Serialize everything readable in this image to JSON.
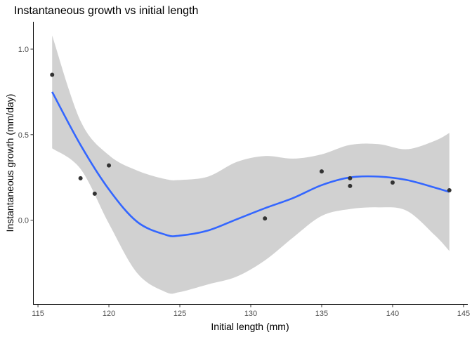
{
  "chart_data": {
    "type": "scatter",
    "title": "Instantaneous growth vs initial length",
    "xlabel": "Initial length (mm)",
    "ylabel": "Instantaneous growth (mm/day)",
    "xlim": [
      114.7,
      145.3
    ],
    "ylim": [
      -0.49,
      1.16
    ],
    "x_ticks": [
      115,
      120,
      125,
      130,
      135,
      140,
      145
    ],
    "y_ticks": [
      0.0,
      0.5,
      1.0
    ],
    "y_tick_labels": [
      "0.0",
      "0.5",
      "1.0"
    ],
    "grid": false,
    "points": [
      {
        "x": 116,
        "y": 0.85
      },
      {
        "x": 118,
        "y": 0.245
      },
      {
        "x": 119,
        "y": 0.155
      },
      {
        "x": 120,
        "y": 0.32
      },
      {
        "x": 131,
        "y": 0.01
      },
      {
        "x": 135,
        "y": 0.285
      },
      {
        "x": 137,
        "y": 0.245
      },
      {
        "x": 137,
        "y": 0.2
      },
      {
        "x": 140,
        "y": 0.22
      },
      {
        "x": 144,
        "y": 0.175
      }
    ],
    "smooth": {
      "color": "#3366ff",
      "band_color": "#bfbfbf",
      "fit": [
        {
          "x": 116,
          "y": 0.75
        },
        {
          "x": 118,
          "y": 0.44
        },
        {
          "x": 120,
          "y": 0.18
        },
        {
          "x": 122,
          "y": -0.01
        },
        {
          "x": 124,
          "y": -0.085
        },
        {
          "x": 125,
          "y": -0.09
        },
        {
          "x": 127,
          "y": -0.06
        },
        {
          "x": 129,
          "y": 0.005
        },
        {
          "x": 131,
          "y": 0.07
        },
        {
          "x": 133,
          "y": 0.13
        },
        {
          "x": 135,
          "y": 0.205
        },
        {
          "x": 137,
          "y": 0.25
        },
        {
          "x": 139,
          "y": 0.255
        },
        {
          "x": 141,
          "y": 0.235
        },
        {
          "x": 143,
          "y": 0.19
        },
        {
          "x": 144,
          "y": 0.165
        }
      ],
      "upper": [
        {
          "x": 116,
          "y": 1.08
        },
        {
          "x": 118,
          "y": 0.58
        },
        {
          "x": 120,
          "y": 0.38
        },
        {
          "x": 122,
          "y": 0.29
        },
        {
          "x": 124,
          "y": 0.24
        },
        {
          "x": 125,
          "y": 0.235
        },
        {
          "x": 127,
          "y": 0.255
        },
        {
          "x": 129,
          "y": 0.34
        },
        {
          "x": 131,
          "y": 0.375
        },
        {
          "x": 133,
          "y": 0.36
        },
        {
          "x": 135,
          "y": 0.385
        },
        {
          "x": 137,
          "y": 0.44
        },
        {
          "x": 139,
          "y": 0.445
        },
        {
          "x": 141,
          "y": 0.415
        },
        {
          "x": 143,
          "y": 0.465
        },
        {
          "x": 144,
          "y": 0.51
        }
      ],
      "lower": [
        {
          "x": 116,
          "y": 0.42
        },
        {
          "x": 118,
          "y": 0.3
        },
        {
          "x": 120,
          "y": -0.02
        },
        {
          "x": 122,
          "y": -0.31
        },
        {
          "x": 124,
          "y": -0.42
        },
        {
          "x": 125,
          "y": -0.42
        },
        {
          "x": 127,
          "y": -0.375
        },
        {
          "x": 129,
          "y": -0.33
        },
        {
          "x": 131,
          "y": -0.235
        },
        {
          "x": 133,
          "y": -0.1
        },
        {
          "x": 135,
          "y": 0.025
        },
        {
          "x": 137,
          "y": 0.065
        },
        {
          "x": 139,
          "y": 0.075
        },
        {
          "x": 141,
          "y": 0.055
        },
        {
          "x": 143,
          "y": -0.09
        },
        {
          "x": 144,
          "y": -0.18
        }
      ]
    },
    "point_color": "#333333"
  }
}
